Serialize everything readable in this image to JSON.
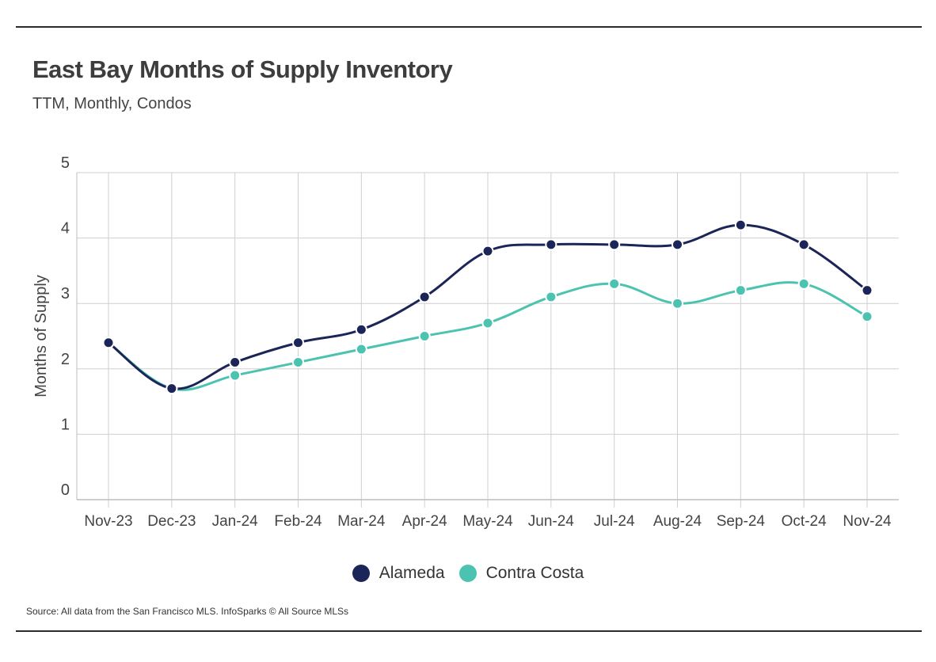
{
  "header": {
    "title": "East Bay Months of Supply Inventory",
    "subtitle": "TTM, Monthly, Condos"
  },
  "footer": {
    "source": "Source:  All data from the San Francisco MLS. InfoSparks © All Source MLSs"
  },
  "colors": {
    "alameda": "#1c2557",
    "contra_costa": "#4cc3b0",
    "grid": "#cfcfcf",
    "axis_text": "#444444"
  },
  "chart_data": {
    "type": "line",
    "title": "East Bay Months of Supply Inventory",
    "subtitle": "TTM, Monthly, Condos",
    "xlabel": "",
    "ylabel": "Months of Supply",
    "ylim": [
      0,
      5
    ],
    "yticks": [
      "0",
      "1",
      "2",
      "3",
      "4",
      "5"
    ],
    "grid": true,
    "legend_position": "bottom",
    "categories": [
      "Nov-23",
      "Dec-23",
      "Jan-24",
      "Feb-24",
      "Mar-24",
      "Apr-24",
      "May-24",
      "Jun-24",
      "Jul-24",
      "Aug-24",
      "Sep-24",
      "Oct-24",
      "Nov-24"
    ],
    "series": [
      {
        "name": "Alameda",
        "color": "#1c2557",
        "values": [
          2.4,
          1.7,
          2.1,
          2.4,
          2.6,
          3.1,
          3.8,
          3.9,
          3.9,
          3.9,
          4.2,
          3.9,
          3.2
        ]
      },
      {
        "name": "Contra Costa",
        "color": "#4cc3b0",
        "values": [
          2.4,
          1.7,
          1.9,
          2.1,
          2.3,
          2.5,
          2.7,
          3.1,
          3.3,
          3.0,
          3.2,
          3.3,
          2.8
        ]
      }
    ]
  }
}
